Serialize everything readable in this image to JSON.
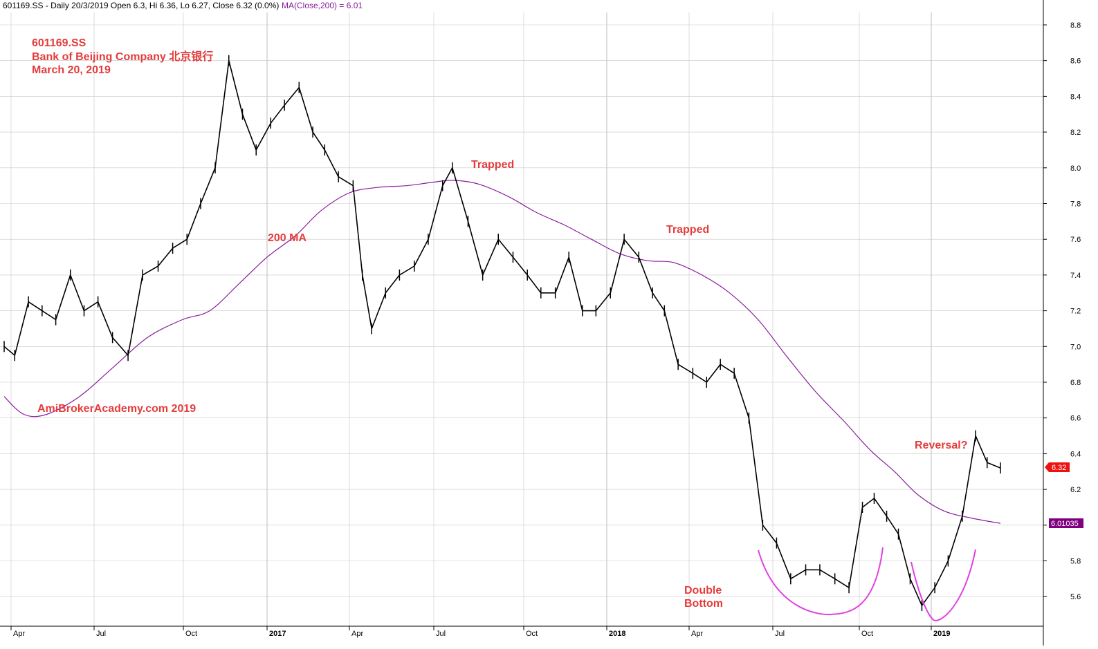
{
  "header": {
    "symbol_info": "601169.SS - Daily 20/3/2019 Open 6.3, Hi 6.36, Lo 6.27, Close 6.32 (0.0%)",
    "ma_label": "MA(Close,200) = 6.01"
  },
  "info_block": {
    "symbol": "601169.SS",
    "company": "Bank of Beijing Company 北京银行",
    "date": "March 20, 2019",
    "watermark": "AmiBrokerAcademy.com   2019"
  },
  "annotations": {
    "ma_label": "200 MA",
    "trapped_1": "Trapped",
    "trapped_2": "Trapped",
    "double_bottom_1": "Double",
    "double_bottom_2": "Bottom",
    "reversal": "Reversal?"
  },
  "price_tags": {
    "close": "6.32",
    "ma": "6.01035"
  },
  "colors": {
    "price": "#000000",
    "ma": "#8b1a9e",
    "annotation": "#e53c3c",
    "arc": "#e040e0",
    "close_tag": "#ee1111",
    "ma_tag": "#800080",
    "grid": "#c8c8c8"
  },
  "chart_data": {
    "type": "line",
    "title": "601169.SS Bank of Beijing Company 北京银行",
    "ylim": [
      5.4,
      8.9
    ],
    "y_ticks": [
      "5.6",
      "5.8",
      "6.0",
      "6.2",
      "6.4",
      "6.6",
      "6.8",
      "7.0",
      "7.2",
      "7.4",
      "7.6",
      "7.8",
      "8.0",
      "8.2",
      "8.4",
      "8.6",
      "8.8"
    ],
    "x_ticks": [
      "Apr",
      "Jul",
      "Oct",
      "2017",
      "Apr",
      "Jul",
      "Oct",
      "2018",
      "Apr",
      "Jul",
      "Oct",
      "2019"
    ],
    "x_tick_dates": [
      "2016-04-01",
      "2016-07-01",
      "2016-10-01",
      "2017-01-01",
      "2017-04-01",
      "2017-07-01",
      "2017-10-01",
      "2018-01-01",
      "2018-04-01",
      "2018-07-01",
      "2018-10-01",
      "2019-01-01"
    ],
    "series": [
      {
        "name": "601169.SS",
        "x": [
          "2016-03-24",
          "2016-04-05",
          "2016-04-20",
          "2016-05-05",
          "2016-05-20",
          "2016-06-05",
          "2016-06-20",
          "2016-07-05",
          "2016-07-20",
          "2016-08-05",
          "2016-08-20",
          "2016-09-05",
          "2016-09-20",
          "2016-10-05",
          "2016-10-20",
          "2016-11-05",
          "2016-11-20",
          "2016-12-05",
          "2016-12-20",
          "2017-01-05",
          "2017-01-20",
          "2017-02-05",
          "2017-02-20",
          "2017-03-05",
          "2017-03-20",
          "2017-04-05",
          "2017-04-15",
          "2017-04-25",
          "2017-05-10",
          "2017-05-25",
          "2017-06-10",
          "2017-06-25",
          "2017-07-10",
          "2017-07-20",
          "2017-08-05",
          "2017-08-20",
          "2017-09-05",
          "2017-09-20",
          "2017-10-05",
          "2017-10-20",
          "2017-11-05",
          "2017-11-20",
          "2017-12-05",
          "2017-12-20",
          "2018-01-05",
          "2018-01-20",
          "2018-02-05",
          "2018-02-20",
          "2018-03-05",
          "2018-03-20",
          "2018-04-05",
          "2018-04-20",
          "2018-05-05",
          "2018-05-20",
          "2018-06-05",
          "2018-06-20",
          "2018-07-05",
          "2018-07-20",
          "2018-08-05",
          "2018-08-20",
          "2018-09-05",
          "2018-09-20",
          "2018-10-05",
          "2018-10-20",
          "2018-11-05",
          "2018-11-20",
          "2018-12-05",
          "2018-12-20",
          "2019-01-05",
          "2019-01-20",
          "2019-02-05",
          "2019-02-20",
          "2019-03-05",
          "2019-03-20"
        ],
        "y": [
          7.0,
          6.95,
          7.25,
          7.2,
          7.15,
          7.4,
          7.2,
          7.25,
          7.05,
          6.95,
          7.4,
          7.45,
          7.55,
          7.6,
          7.8,
          8.0,
          8.6,
          8.3,
          8.1,
          8.25,
          8.35,
          8.45,
          8.2,
          8.1,
          7.95,
          7.9,
          7.4,
          7.1,
          7.3,
          7.4,
          7.45,
          7.6,
          7.9,
          8.0,
          7.7,
          7.4,
          7.6,
          7.5,
          7.4,
          7.3,
          7.3,
          7.5,
          7.2,
          7.2,
          7.3,
          7.6,
          7.5,
          7.3,
          7.2,
          6.9,
          6.85,
          6.8,
          6.9,
          6.85,
          6.6,
          6.0,
          5.9,
          5.7,
          5.75,
          5.75,
          5.7,
          5.65,
          6.1,
          6.15,
          6.05,
          5.95,
          5.7,
          5.55,
          5.65,
          5.8,
          6.05,
          6.5,
          6.35,
          6.32
        ]
      },
      {
        "name": "MA(Close,200)",
        "x": [
          "2016-03-24",
          "2016-04-15",
          "2016-05-10",
          "2016-06-15",
          "2016-07-20",
          "2016-08-25",
          "2016-09-30",
          "2016-10-30",
          "2016-12-01",
          "2017-01-01",
          "2017-02-01",
          "2017-03-01",
          "2017-04-01",
          "2017-05-01",
          "2017-06-01",
          "2017-07-01",
          "2017-07-20",
          "2017-08-15",
          "2017-09-15",
          "2017-10-15",
          "2017-11-15",
          "2017-12-15",
          "2018-01-15",
          "2018-02-15",
          "2018-03-15",
          "2018-04-15",
          "2018-05-15",
          "2018-06-15",
          "2018-07-15",
          "2018-08-15",
          "2018-09-15",
          "2018-10-15",
          "2018-11-15",
          "2018-12-15",
          "2019-01-15",
          "2019-02-15",
          "2019-03-20"
        ],
        "y": [
          6.72,
          6.62,
          6.62,
          6.72,
          6.88,
          7.05,
          7.15,
          7.2,
          7.35,
          7.5,
          7.62,
          7.76,
          7.86,
          7.89,
          7.9,
          7.92,
          7.93,
          7.91,
          7.84,
          7.75,
          7.68,
          7.6,
          7.52,
          7.48,
          7.47,
          7.4,
          7.3,
          7.15,
          6.95,
          6.75,
          6.58,
          6.42,
          6.3,
          6.17,
          6.08,
          6.04,
          6.01
        ]
      }
    ]
  }
}
